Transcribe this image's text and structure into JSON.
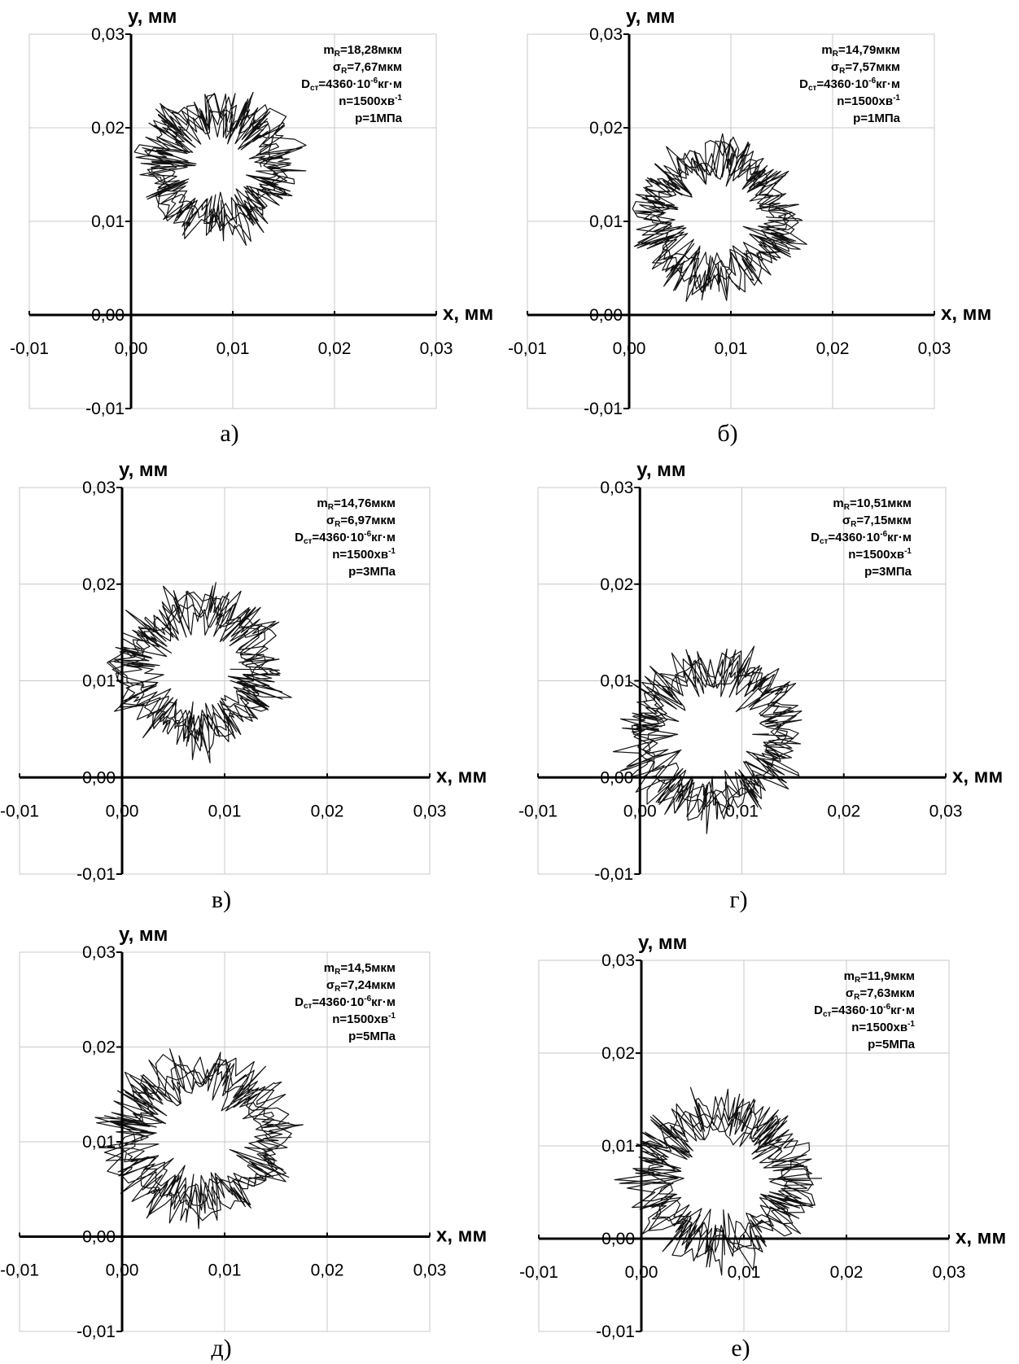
{
  "chart_data": [
    {
      "type": "scatter",
      "caption": "а)",
      "xlabel": "x, мм",
      "ylabel": "y, мм",
      "xlim": [
        -0.01,
        0.03
      ],
      "ylim": [
        -0.01,
        0.03
      ],
      "xticks": [
        "-0,01",
        "0,00",
        "0,01",
        "0,02",
        "0,03"
      ],
      "yticks": [
        "-0,01",
        "0,00",
        "0,01",
        "0,02",
        "0,03"
      ],
      "grid": true,
      "annotation": [
        {
          "main": "m",
          "sub": "R",
          "rest": "=18,28мкм"
        },
        {
          "main": "σ",
          "sub": "R",
          "rest": "=7,67мкм"
        },
        {
          "main": "D",
          "sub": "ст",
          "rest": "=4360·10",
          "sup": "-6",
          "tail": "кг·м"
        },
        {
          "main": "n=1500хв",
          "sup": "-1"
        },
        {
          "main": "p=1МПа"
        }
      ],
      "orbit": {
        "cx": 0.0087,
        "cy": 0.0158,
        "r": 0.0057
      }
    },
    {
      "type": "scatter",
      "caption": "б)",
      "xlabel": "x, мм",
      "ylabel": "y, мм",
      "xlim": [
        -0.01,
        0.03
      ],
      "ylim": [
        -0.01,
        0.03
      ],
      "xticks": [
        "-0,01",
        "0,00",
        "0,01",
        "0,02",
        "0,03"
      ],
      "yticks": [
        "-0,01",
        "0,00",
        "0,01",
        "0,02",
        "0,03"
      ],
      "grid": true,
      "annotation": [
        {
          "main": "m",
          "sub": "R",
          "rest": "=14,79мкм"
        },
        {
          "main": "σ",
          "sub": "R",
          "rest": "=7,57мкм"
        },
        {
          "main": "D",
          "sub": "ст",
          "rest": "=4360·10",
          "sup": "-6",
          "tail": "кг·м"
        },
        {
          "main": "n=1500хв",
          "sup": "-1"
        },
        {
          "main": "p=1МПа"
        }
      ],
      "orbit": {
        "cx": 0.0085,
        "cy": 0.0105,
        "r": 0.0062
      }
    },
    {
      "type": "scatter",
      "caption": "в)",
      "xlabel": "x, мм",
      "ylabel": "y, мм",
      "xlim": [
        -0.01,
        0.03
      ],
      "ylim": [
        -0.01,
        0.03
      ],
      "xticks": [
        "-0,01",
        "0,00",
        "0,01",
        "0,02",
        "0,03"
      ],
      "yticks": [
        "-0,01",
        "0,00",
        "0,01",
        "0,02",
        "0,03"
      ],
      "grid": true,
      "annotation": [
        {
          "main": "m",
          "sub": "R",
          "rest": "=14,76мкм"
        },
        {
          "main": "σ",
          "sub": "R",
          "rest": "=6,97мкм"
        },
        {
          "main": "D",
          "sub": "ст",
          "rest": "=4360·10",
          "sup": "-6",
          "tail": "кг·м"
        },
        {
          "main": "n=1500хв",
          "sup": "-1"
        },
        {
          "main": "p=3МПа"
        }
      ],
      "orbit": {
        "cx": 0.0073,
        "cy": 0.0112,
        "r": 0.0062
      }
    },
    {
      "type": "scatter",
      "caption": "г)",
      "xlabel": "x, мм",
      "ylabel": "y, мм",
      "xlim": [
        -0.01,
        0.03
      ],
      "ylim": [
        -0.01,
        0.03
      ],
      "xticks": [
        "-0,01",
        "0,00",
        "0,01",
        "0,02",
        "0,03"
      ],
      "yticks": [
        "-0,01",
        "0,00",
        "0,01",
        "0,02",
        "0,03"
      ],
      "grid": true,
      "annotation": [
        {
          "main": "m",
          "sub": "R",
          "rest": "=10,51мкм"
        },
        {
          "main": "σ",
          "sub": "R",
          "rest": "=7,15мкм"
        },
        {
          "main": "D",
          "sub": "ст",
          "rest": "=4360·10",
          "sup": "-6",
          "tail": "кг·м"
        },
        {
          "main": "n=1500хв",
          "sup": "-1"
        },
        {
          "main": "p=3МПа"
        }
      ],
      "orbit": {
        "cx": 0.0072,
        "cy": 0.0045,
        "r": 0.0068
      }
    },
    {
      "type": "scatter",
      "caption": "д)",
      "xlabel": "x, мм",
      "ylabel": "y, мм",
      "xlim": [
        -0.01,
        0.03
      ],
      "ylim": [
        -0.01,
        0.03
      ],
      "xticks": [
        "-0,01",
        "0,00",
        "0,01",
        "0,02",
        "0,03"
      ],
      "yticks": [
        "-0,01",
        "0,00",
        "0,01",
        "0,02",
        "0,03"
      ],
      "grid": true,
      "annotation": [
        {
          "main": "m",
          "sub": "R",
          "rest": "=14,5мкм"
        },
        {
          "main": "σ",
          "sub": "R",
          "rest": "=7,24мкм"
        },
        {
          "main": "D",
          "sub": "ст",
          "rest": "=4360·10",
          "sup": "-6",
          "tail": "кг·м"
        },
        {
          "main": "n=1500хв",
          "sup": "-1"
        },
        {
          "main": "p=5МПа"
        }
      ],
      "orbit": {
        "cx": 0.0075,
        "cy": 0.0105,
        "r": 0.0068
      }
    },
    {
      "type": "scatter",
      "caption": "е)",
      "xlabel": "x, мм",
      "ylabel": "y, мм",
      "xlim": [
        -0.01,
        0.03
      ],
      "ylim": [
        -0.01,
        0.03
      ],
      "xticks": [
        "-0,01",
        "0,00",
        "0,01",
        "0,02",
        "0,03"
      ],
      "yticks": [
        "-0,01",
        "0,00",
        "0,01",
        "0,02",
        "0,03"
      ],
      "grid": true,
      "annotation": [
        {
          "main": "m",
          "sub": "R",
          "rest": "=11,9мкм"
        },
        {
          "main": "σ",
          "sub": "R",
          "rest": "=7,63мкм"
        },
        {
          "main": "D",
          "sub": "ст",
          "rest": "=4360·10",
          "sup": "-6",
          "tail": "кг·м"
        },
        {
          "main": "n=1500хв",
          "sup": "-1"
        },
        {
          "main": "p=5МПа"
        }
      ],
      "orbit": {
        "cx": 0.0078,
        "cy": 0.0065,
        "r": 0.0068
      }
    }
  ]
}
